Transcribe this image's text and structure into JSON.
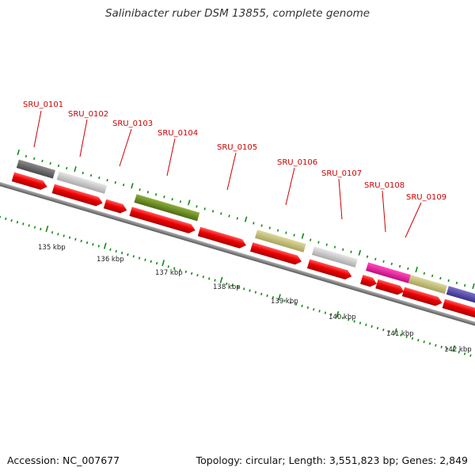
{
  "title": "Salinibacter ruber DSM 13855, complete genome",
  "footer": {
    "accession": "Accession: NC_007677",
    "topology": "Topology: circular; Length: 3,551,823 bp; Genes: 2,849"
  },
  "axis": {
    "ticks": [
      "135 kbp",
      "136 kbp",
      "137 kbp",
      "138 kbp",
      "139 kbp",
      "140 kbp",
      "141 kbp",
      "142 kbp"
    ]
  },
  "colors": {
    "label_red": "#cc0000",
    "cds_red": "#ee0000",
    "tick_green": "#138a13",
    "backbone": "#8a8a8a",
    "cog_dark_gray": "#666666",
    "cog_light_gray": "#cfcfcf",
    "cog_olive_green": "#6e8c22",
    "cog_khaki": "#c4c07c",
    "cog_magenta": "#e81c9e",
    "cog_purple": "#5a4ea8"
  },
  "genes": [
    {
      "label": "SRU_0101",
      "cog_color": "#666666"
    },
    {
      "label": "SRU_0102",
      "cog_color": "#cfcfcf"
    },
    {
      "label": "SRU_0103",
      "cog_color": null
    },
    {
      "label": "SRU_0104",
      "cog_color": "#6e8c22"
    },
    {
      "label": "SRU_0105",
      "cog_color": null
    },
    {
      "label": "SRU_0106",
      "cog_color": "#c4c07c"
    },
    {
      "label": "SRU_0107",
      "cog_color": "#cfcfcf"
    },
    {
      "label": "SRU_0108",
      "cog_color": "#e81c9e"
    },
    {
      "label": "SRU_0109",
      "cog_color": "#c4c07c"
    }
  ]
}
